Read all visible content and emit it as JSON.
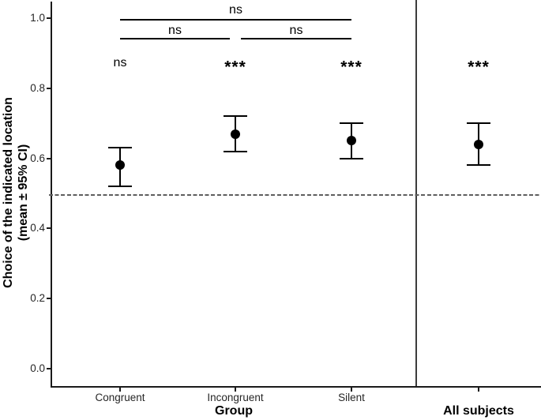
{
  "chart_data": {
    "type": "scatter",
    "subtype": "pointrange-with-ci",
    "title": "",
    "ylabel_line1": "Choice of the indicated location",
    "ylabel_line2": "(mean ± 95% CI)",
    "xlabel": "Group",
    "panel2_label": "All subjects",
    "categories": [
      "Congruent",
      "Incongruent",
      "Silent"
    ],
    "points": [
      {
        "group": "Congruent",
        "mean": 0.58,
        "ci_low": 0.52,
        "ci_high": 0.63,
        "sig_vs_chance": "ns"
      },
      {
        "group": "Incongruent",
        "mean": 0.67,
        "ci_low": 0.62,
        "ci_high": 0.72,
        "sig_vs_chance": "***"
      },
      {
        "group": "Silent",
        "mean": 0.65,
        "ci_low": 0.6,
        "ci_high": 0.7,
        "sig_vs_chance": "***"
      },
      {
        "group": "All subjects",
        "mean": 0.64,
        "ci_low": 0.58,
        "ci_high": 0.7,
        "sig_vs_chance": "***"
      }
    ],
    "comparisons": [
      {
        "from": "Congruent",
        "to": "Silent",
        "label": "ns",
        "row": 1
      },
      {
        "from": "Congruent",
        "to": "Incongruent",
        "label": "ns",
        "row": 2
      },
      {
        "from": "Incongruent",
        "to": "Silent",
        "label": "ns",
        "row": 2
      }
    ],
    "reference_line": 0.5,
    "yticks": [
      0.0,
      0.2,
      0.4,
      0.6,
      0.8,
      1.0
    ],
    "ylim": [
      -0.05,
      1.05
    ],
    "grid": false,
    "legend": "none",
    "colors": {
      "point": "#000000",
      "axis": "#1a1a1a",
      "reference_line": "#5e5e5e",
      "panel_separator": "#3c3c3c",
      "text": "#000000",
      "background": "#ffffff"
    }
  }
}
